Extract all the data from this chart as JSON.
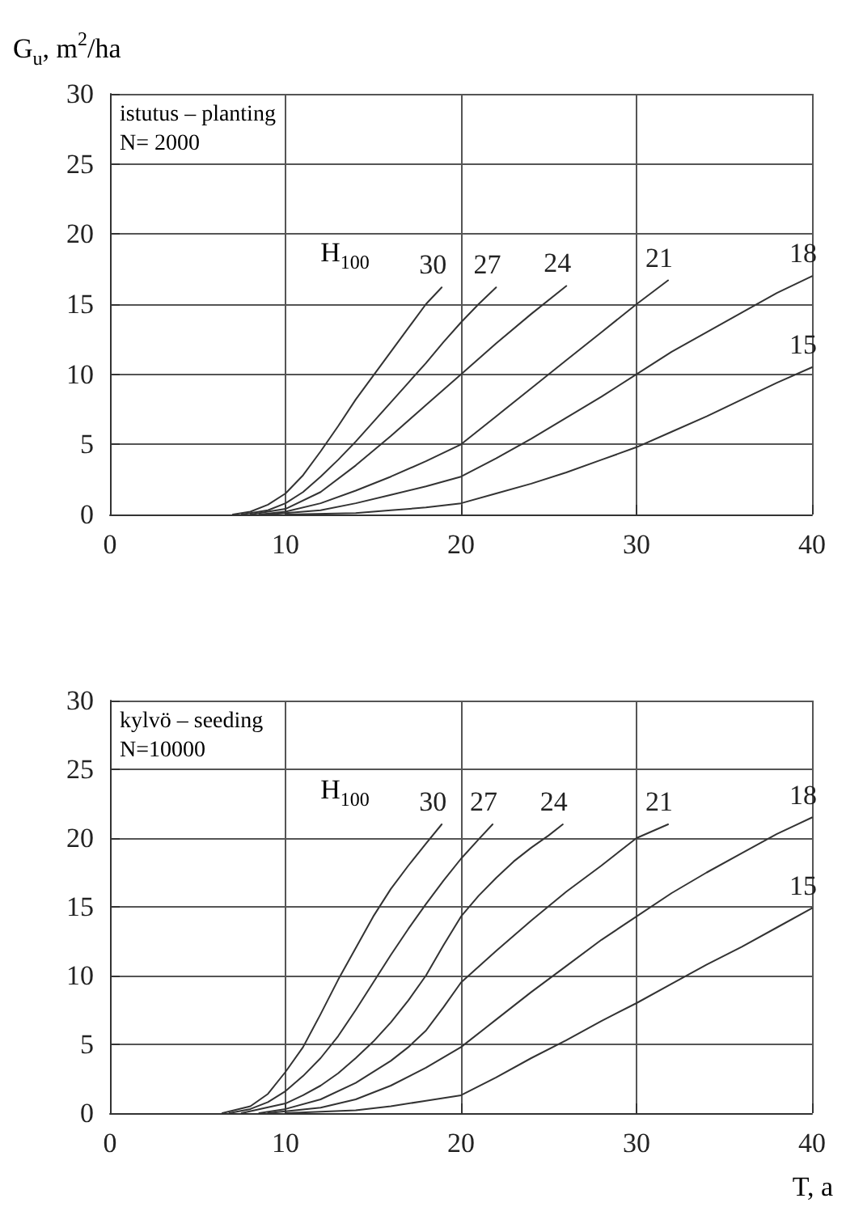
{
  "chart_data": [
    {
      "type": "line",
      "ylabel": "G$_{u}$, m$^{2}$/ha",
      "legend_title": "H$_{100}$",
      "annotations": [
        "istutus – planting",
        "N= 2000"
      ],
      "xlim": [
        0,
        40
      ],
      "xticks": [
        0,
        10,
        20,
        30,
        40
      ],
      "ylim": [
        0,
        30
      ],
      "yticks": [
        0,
        5,
        10,
        15,
        20,
        25,
        30
      ],
      "grid": true,
      "marker": "none",
      "line_style": "solid",
      "series": [
        {
          "name": "30",
          "color": "#333333",
          "x": [
            7,
            8,
            9,
            10,
            11,
            12,
            13,
            14,
            15,
            16,
            17,
            18,
            18.9
          ],
          "values": [
            0,
            0.2,
            0.7,
            1.5,
            2.8,
            4.5,
            6.3,
            8.2,
            9.9,
            11.6,
            13.3,
            15,
            16.2
          ]
        },
        {
          "name": "27",
          "color": "#333333",
          "x": [
            7.5,
            9,
            10,
            11,
            12,
            13,
            14,
            15,
            16,
            17,
            18,
            19,
            20,
            21,
            22
          ],
          "values": [
            0,
            0.3,
            0.8,
            1.6,
            2.7,
            3.9,
            5.2,
            6.6,
            8,
            9.4,
            10.8,
            12.3,
            13.7,
            15,
            16.2
          ]
        },
        {
          "name": "24",
          "color": "#333333",
          "x": [
            8,
            10,
            12,
            14,
            16,
            18,
            20,
            22,
            24,
            26
          ],
          "values": [
            0,
            0.4,
            1.6,
            3.5,
            5.6,
            7.8,
            10,
            12.2,
            14.3,
            16.3
          ]
        },
        {
          "name": "21",
          "color": "#333333",
          "x": [
            8.5,
            10,
            12,
            14,
            16,
            18,
            20,
            22,
            24,
            26,
            28,
            30,
            31.8
          ],
          "values": [
            0,
            0.2,
            0.8,
            1.7,
            2.7,
            3.8,
            5,
            7,
            9,
            11,
            13,
            15,
            16.7
          ]
        },
        {
          "name": "18",
          "color": "#333333",
          "x": [
            9,
            12,
            14,
            16,
            18,
            20,
            22,
            24,
            26,
            28,
            30,
            32,
            34,
            36,
            38,
            40
          ],
          "values": [
            0,
            0.3,
            0.8,
            1.4,
            2,
            2.7,
            4,
            5.4,
            6.9,
            8.4,
            10,
            11.6,
            13,
            14.4,
            15.8,
            17
          ]
        },
        {
          "name": "15",
          "color": "#333333",
          "x": [
            10,
            14,
            16,
            18,
            20,
            22,
            24,
            26,
            28,
            30,
            32,
            34,
            36,
            38,
            40
          ],
          "values": [
            0,
            0.1,
            0.3,
            0.5,
            0.8,
            1.5,
            2.2,
            3,
            3.9,
            4.8,
            5.9,
            7,
            8.2,
            9.4,
            10.5
          ]
        }
      ]
    },
    {
      "type": "line",
      "xlabel": "T, a",
      "legend_title": "H$_{100}$",
      "annotations": [
        "kylvö – seeding",
        "N=10000"
      ],
      "xlim": [
        0,
        40
      ],
      "xticks": [
        0,
        10,
        20,
        30,
        40
      ],
      "ylim": [
        0,
        30
      ],
      "yticks": [
        0,
        5,
        10,
        15,
        20,
        25,
        30
      ],
      "grid": true,
      "marker": "none",
      "line_style": "solid",
      "series": [
        {
          "name": "30",
          "color": "#333333",
          "x": [
            6.4,
            8,
            9,
            10,
            11,
            12,
            13,
            14,
            15,
            16,
            17,
            18,
            18.9
          ],
          "values": [
            0,
            0.5,
            1.4,
            3,
            4.8,
            7.2,
            9.7,
            12,
            14.3,
            16.3,
            18,
            19.6,
            21
          ]
        },
        {
          "name": "27",
          "color": "#333333",
          "x": [
            6.8,
            8,
            9,
            10,
            11,
            12,
            13,
            14,
            15,
            16,
            17,
            18,
            19,
            20,
            21,
            21.8
          ],
          "values": [
            0,
            0.3,
            0.8,
            1.6,
            2.7,
            4,
            5.6,
            7.5,
            9.5,
            11.5,
            13.4,
            15.2,
            16.9,
            18.5,
            19.9,
            21
          ]
        },
        {
          "name": "24",
          "color": "#333333",
          "x": [
            7.5,
            10,
            11,
            12,
            13,
            14,
            15,
            16,
            17,
            18,
            19,
            20,
            21,
            22,
            23,
            24,
            25,
            25.8
          ],
          "values": [
            0,
            0.7,
            1.3,
            2,
            2.9,
            4,
            5.2,
            6.6,
            8.2,
            10,
            12.2,
            14.3,
            15.8,
            17.1,
            18.3,
            19.3,
            20.2,
            21
          ]
        },
        {
          "name": "21",
          "color": "#333333",
          "x": [
            8.5,
            10,
            12,
            14,
            16,
            17,
            18,
            19,
            20,
            22,
            24,
            26,
            28,
            30,
            31.8
          ],
          "values": [
            0,
            0.3,
            1,
            2.2,
            3.8,
            4.8,
            6,
            7.7,
            9.5,
            11.8,
            14,
            16.1,
            18,
            20,
            21
          ]
        },
        {
          "name": "18",
          "color": "#333333",
          "x": [
            9,
            12,
            14,
            16,
            18,
            20,
            22,
            24,
            26,
            28,
            30,
            32,
            34,
            36,
            38,
            40
          ],
          "values": [
            0,
            0.4,
            1,
            2,
            3.3,
            4.8,
            6.8,
            8.8,
            10.7,
            12.6,
            14.3,
            16,
            17.5,
            18.9,
            20.3,
            21.5
          ]
        },
        {
          "name": "15",
          "color": "#333333",
          "x": [
            10,
            14,
            16,
            18,
            20,
            22,
            24,
            26,
            28,
            30,
            32,
            34,
            36,
            38,
            40
          ],
          "values": [
            0,
            0.2,
            0.5,
            0.9,
            1.3,
            2.6,
            4,
            5.3,
            6.7,
            8,
            9.4,
            10.8,
            12.1,
            13.5,
            14.9
          ]
        }
      ]
    }
  ]
}
